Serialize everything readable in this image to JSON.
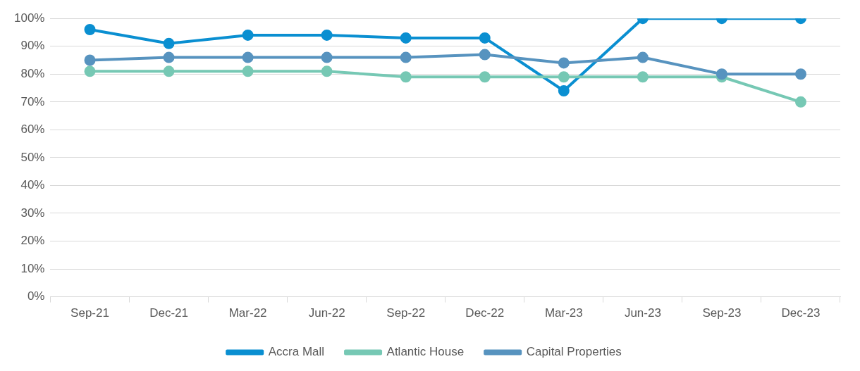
{
  "chart_data": {
    "type": "line",
    "categories": [
      "Sep-21",
      "Dec-21",
      "Mar-22",
      "Jun-22",
      "Sep-22",
      "Dec-22",
      "Mar-23",
      "Jun-23",
      "Sep-23",
      "Dec-23"
    ],
    "series": [
      {
        "name": "Accra Mall",
        "color": "#0a8fd1",
        "values": [
          96,
          91,
          94,
          94,
          93,
          93,
          74,
          100,
          100,
          100
        ]
      },
      {
        "name": "Atlantic House",
        "color": "#76c8b4",
        "values": [
          81,
          81,
          81,
          81,
          79,
          79,
          79,
          79,
          79,
          70
        ]
      },
      {
        "name": "Capital Properties",
        "color": "#5793bf",
        "values": [
          85,
          86,
          86,
          86,
          86,
          87,
          84,
          86,
          80,
          80
        ]
      }
    ],
    "ylim": [
      0,
      100
    ],
    "yticks": [
      {
        "value": 0,
        "label": "0%"
      },
      {
        "value": 10,
        "label": "10%"
      },
      {
        "value": 20,
        "label": "20%"
      },
      {
        "value": 30,
        "label": "30%"
      },
      {
        "value": 40,
        "label": "40%"
      },
      {
        "value": 50,
        "label": "50%"
      },
      {
        "value": 60,
        "label": "60%"
      },
      {
        "value": 70,
        "label": "70%"
      },
      {
        "value": 80,
        "label": "80%"
      },
      {
        "value": 90,
        "label": "90%"
      },
      {
        "value": 100,
        "label": "100%"
      }
    ],
    "grid": "y",
    "legend": "bottom",
    "marker": "circle",
    "line_style": "solid"
  }
}
